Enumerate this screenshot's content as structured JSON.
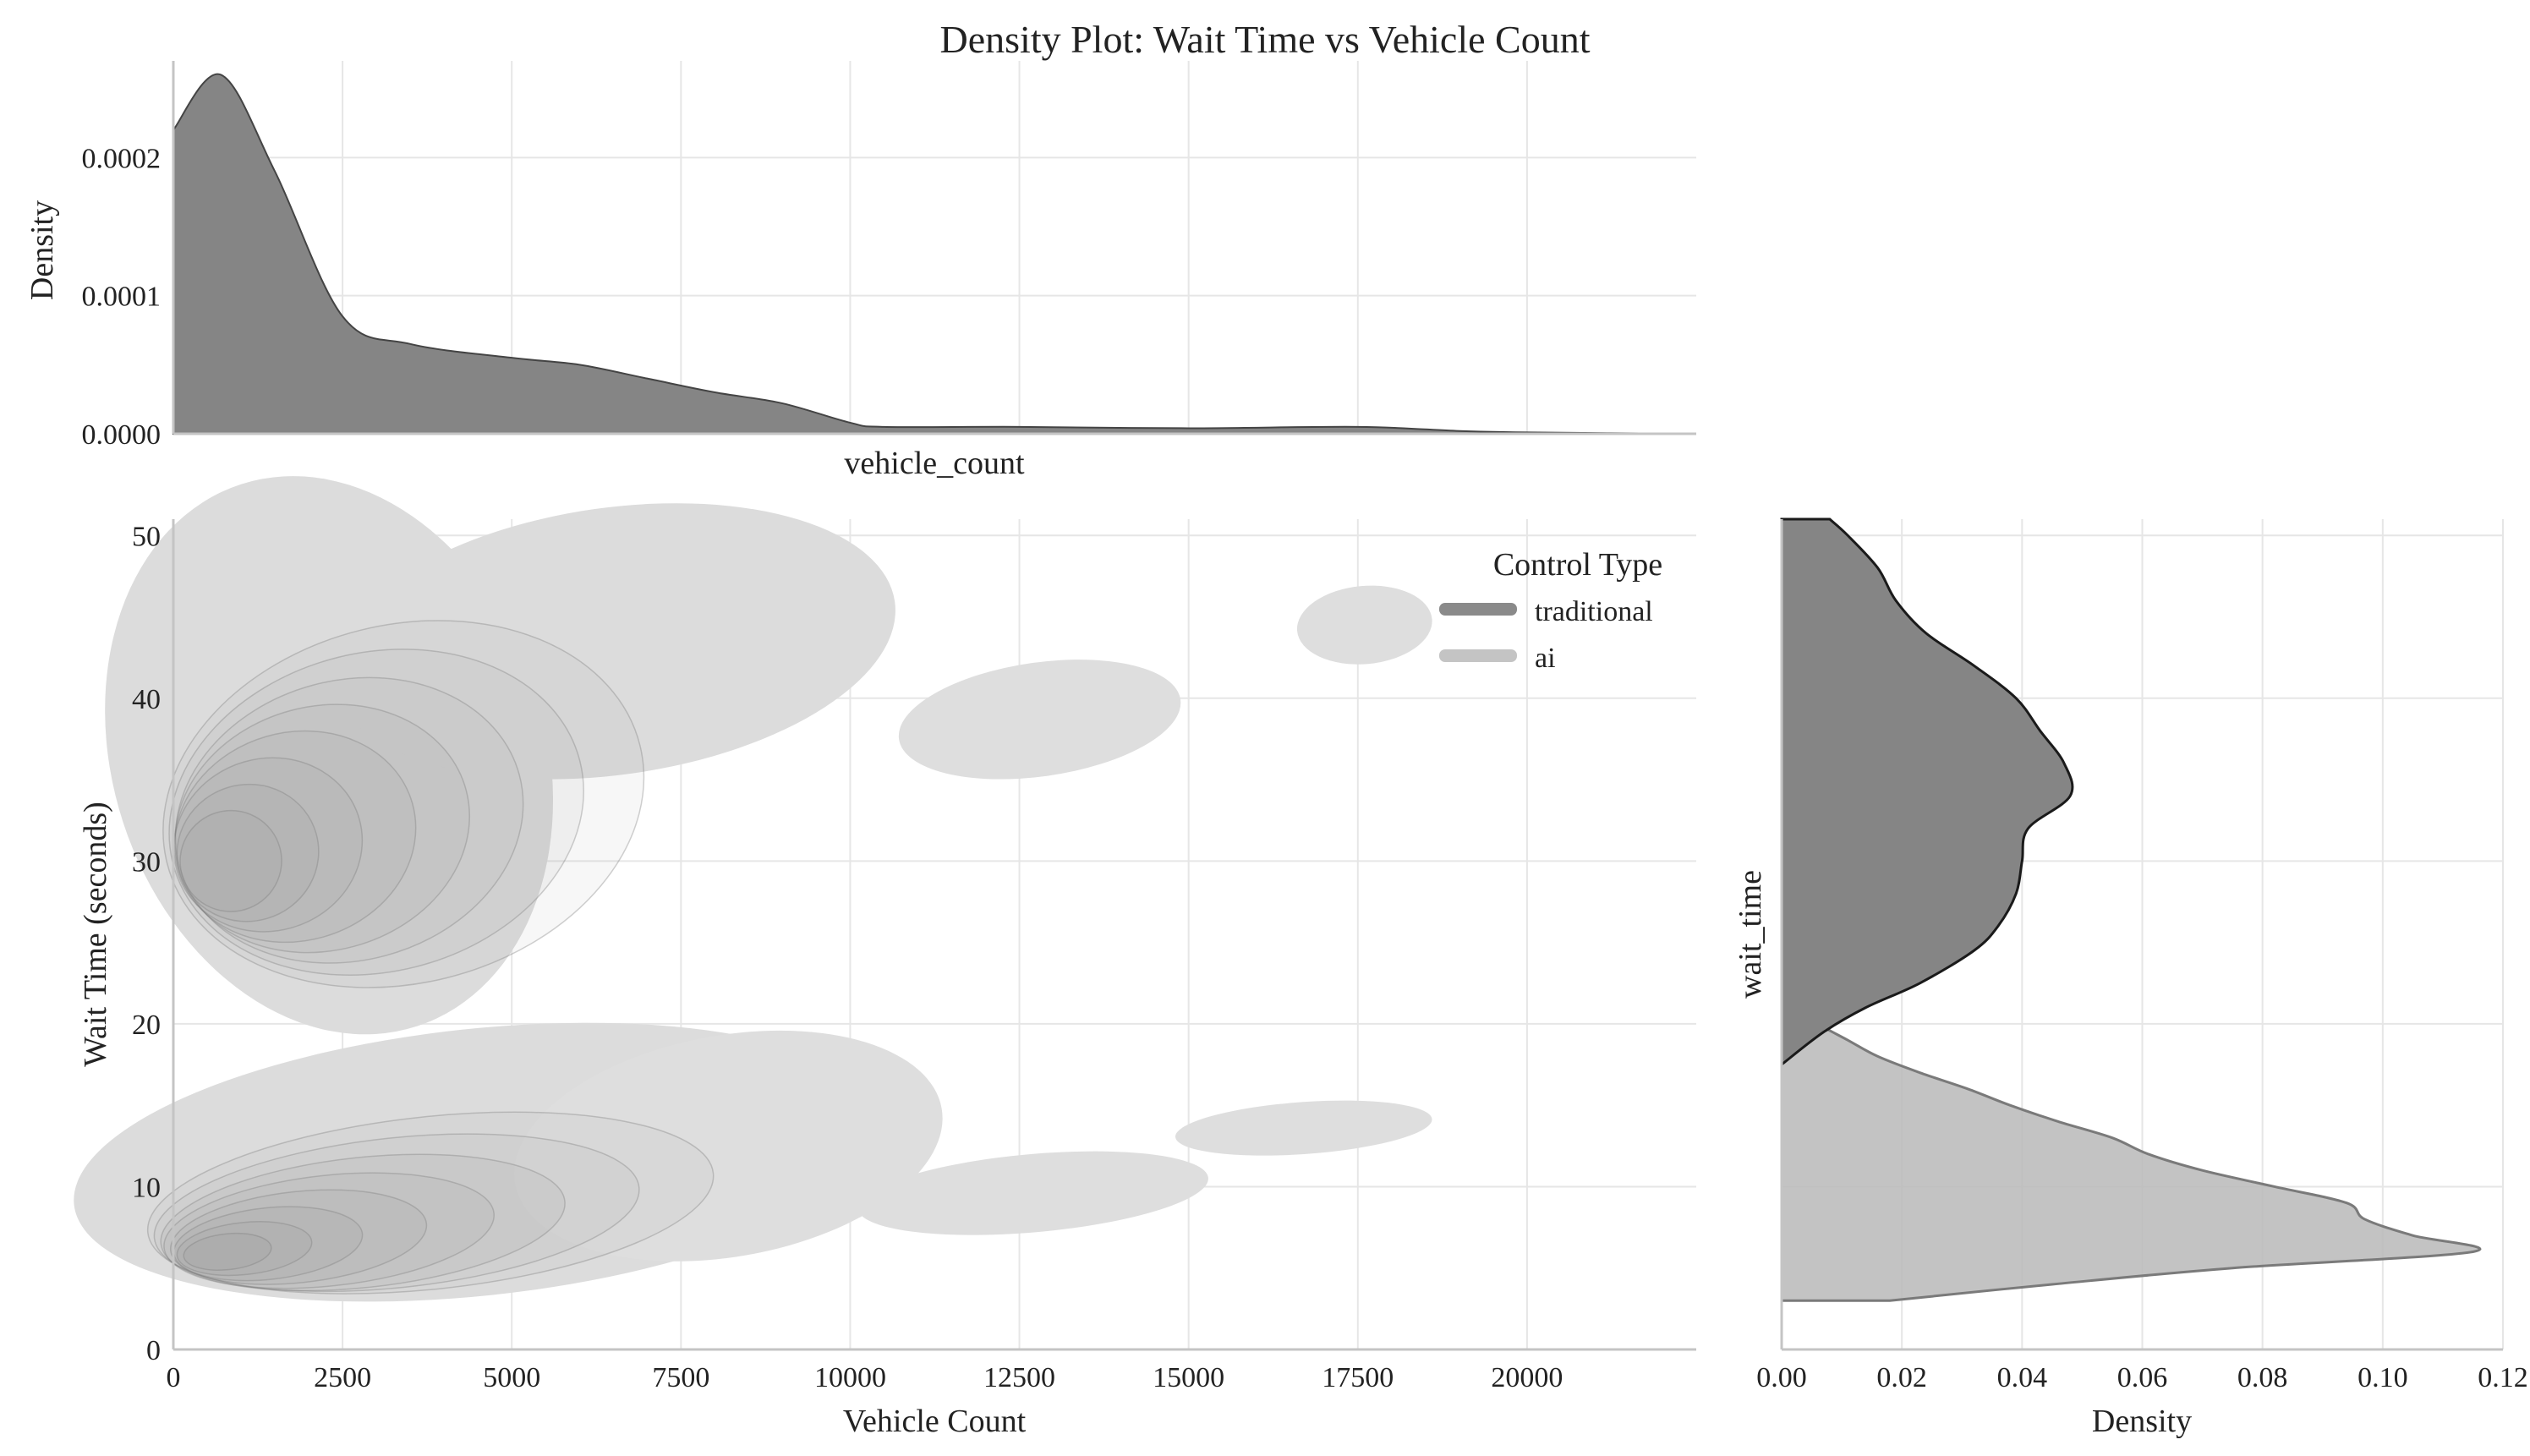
{
  "chart_data": {
    "type": "joint-kde",
    "title": "Density Plot: Wait Time vs Vehicle Count",
    "legend": {
      "title": "Control Type",
      "placement": "top-right",
      "entries": [
        {
          "name": "traditional",
          "color": "#8a8a8a"
        },
        {
          "name": "ai",
          "color": "#c4c4c4"
        }
      ]
    },
    "grid": true,
    "main": {
      "type": "kde-contour",
      "xlabel": "Vehicle Count",
      "ylabel": "Wait Time (seconds)",
      "xlim": [
        0,
        22500
      ],
      "ylim": [
        0,
        51
      ],
      "xticks": [
        0,
        2500,
        5000,
        7500,
        10000,
        12500,
        15000,
        17500,
        20000
      ],
      "xtick_labels": [
        "0",
        "2500",
        "5000",
        "7500",
        "10000",
        "12500",
        "15000",
        "17500",
        "20000"
      ],
      "yticks": [
        0,
        10,
        20,
        30,
        40,
        50
      ],
      "ytick_labels": [
        "0",
        "10",
        "20",
        "30",
        "40",
        "50"
      ],
      "series": [
        {
          "name": "traditional",
          "cluster": {
            "x_range": [
              0,
              10500
            ],
            "y_range": [
              18,
              51
            ],
            "peak": [
              800,
              29
            ]
          }
        },
        {
          "name": "ai",
          "cluster": {
            "x_range": [
              0,
              18500
            ],
            "y_range": [
              3,
              20
            ],
            "peak": [
              800,
              6
            ]
          }
        }
      ],
      "islands": [
        {
          "x": [
            10900,
            14900
          ],
          "y": [
            35,
            42
          ]
        },
        {
          "x": [
            16800,
            18600
          ],
          "y": [
            42,
            47
          ]
        },
        {
          "x": [
            10000,
            15000
          ],
          "y": [
            7,
            12
          ]
        },
        {
          "x": [
            15000,
            18500
          ],
          "y": [
            12,
            15
          ]
        }
      ]
    },
    "top_marginal": {
      "xlabel": "vehicle_count",
      "ylabel": "Density",
      "ylim": [
        0,
        0.00027
      ],
      "yticks": [
        0,
        0.0001,
        0.0002
      ],
      "ytick_labels": [
        "0.0000",
        "0.0001",
        "0.0002"
      ],
      "x": [
        0,
        700,
        1500,
        2500,
        3500,
        5000,
        6000,
        7000,
        8000,
        9000,
        10000,
        10500,
        12500,
        15000,
        17500,
        19000,
        20000,
        22500
      ],
      "y": [
        0.00022,
        0.00026,
        0.00019,
        8.5e-05,
        6.5e-05,
        5.5e-05,
        5e-05,
        4e-05,
        3e-05,
        2.2e-05,
        8e-06,
        5e-06,
        5e-06,
        4e-06,
        5e-06,
        2e-06,
        1e-06,
        0
      ]
    },
    "right_marginal": {
      "xlabel": "Density",
      "ylabel": "wait_time",
      "xlim": [
        0,
        0.12
      ],
      "xticks": [
        0,
        0.02,
        0.04,
        0.06,
        0.08,
        0.1,
        0.12
      ],
      "xtick_labels": [
        "0.00",
        "0.02",
        "0.04",
        "0.06",
        "0.08",
        "0.10",
        "0.12"
      ],
      "series": [
        {
          "name": "traditional",
          "y": [
            17.5,
            19.5,
            21,
            22.5,
            24.5,
            26,
            28,
            30,
            32,
            34,
            36,
            38,
            40,
            42,
            44,
            46,
            48,
            50,
            51
          ],
          "x": [
            0,
            0.007,
            0.014,
            0.023,
            0.032,
            0.036,
            0.039,
            0.04,
            0.041,
            0.048,
            0.047,
            0.043,
            0.039,
            0.032,
            0.024,
            0.019,
            0.016,
            0.011,
            0.008
          ]
        },
        {
          "name": "ai",
          "y": [
            3,
            4,
            5,
            6,
            7,
            8,
            9,
            10,
            11,
            12,
            13,
            14,
            15,
            16,
            17,
            18,
            19,
            20,
            21
          ],
          "x": [
            0.018,
            0.045,
            0.075,
            0.115,
            0.105,
            0.097,
            0.094,
            0.082,
            0.07,
            0.061,
            0.055,
            0.046,
            0.038,
            0.031,
            0.023,
            0.016,
            0.011,
            0.006,
            0.002
          ]
        }
      ]
    }
  }
}
